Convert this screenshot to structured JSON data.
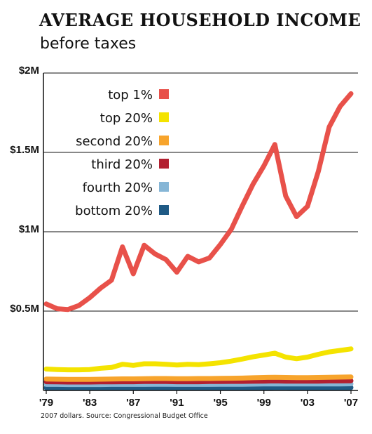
{
  "title": "AVERAGE HOUSEHOLD INCOME",
  "subtitle": "before taxes",
  "source": "2007 dollars. Source: Congressional Budget Office",
  "chart_data": {
    "type": "line",
    "title": "AVERAGE HOUSEHOLD INCOME",
    "subtitle": "before taxes",
    "xlabel": "",
    "ylabel": "",
    "x": [
      1979,
      1980,
      1981,
      1982,
      1983,
      1984,
      1985,
      1986,
      1987,
      1988,
      1989,
      1990,
      1991,
      1992,
      1993,
      1994,
      1995,
      1996,
      1997,
      1998,
      1999,
      2000,
      2001,
      2002,
      2003,
      2004,
      2005,
      2006,
      2007
    ],
    "xlim": [
      1979,
      2007
    ],
    "ylim": [
      0,
      2000000
    ],
    "grid": true,
    "legend_position": "top-left",
    "y_ticks": [
      {
        "value": 500000,
        "label": "$0.5M"
      },
      {
        "value": 1000000,
        "label": "$1M"
      },
      {
        "value": 1500000,
        "label": "$1.5M"
      },
      {
        "value": 2000000,
        "label": "$2M"
      }
    ],
    "x_ticks": [
      {
        "value": 1979,
        "label": "'79"
      },
      {
        "value": 1983,
        "label": "'83"
      },
      {
        "value": 1987,
        "label": "'87"
      },
      {
        "value": 1991,
        "label": "'91"
      },
      {
        "value": 1995,
        "label": "'95"
      },
      {
        "value": 1999,
        "label": "'99"
      },
      {
        "value": 2003,
        "label": "'03"
      },
      {
        "value": 2007,
        "label": "'07"
      }
    ],
    "series": [
      {
        "name": "top 1%",
        "color": "#e8514a",
        "values": [
          545000,
          515000,
          510000,
          535000,
          585000,
          645000,
          695000,
          905000,
          735000,
          915000,
          860000,
          825000,
          745000,
          845000,
          810000,
          835000,
          920000,
          1015000,
          1160000,
          1300000,
          1415000,
          1550000,
          1225000,
          1095000,
          1160000,
          1380000,
          1660000,
          1790000,
          1870000
        ]
      },
      {
        "name": "top 20%",
        "color": "#f4e300",
        "values": [
          135000,
          132000,
          130000,
          130000,
          132000,
          140000,
          145000,
          165000,
          158000,
          168000,
          168000,
          165000,
          160000,
          165000,
          163000,
          168000,
          175000,
          185000,
          198000,
          212000,
          223000,
          235000,
          210000,
          200000,
          210000,
          228000,
          243000,
          252000,
          262000
        ]
      },
      {
        "name": "second 20%",
        "color": "#f7a42c",
        "values": [
          72000,
          71000,
          70000,
          70000,
          70000,
          71000,
          72000,
          73000,
          73000,
          74000,
          75000,
          75000,
          74000,
          74000,
          75000,
          75000,
          76000,
          77000,
          78000,
          80000,
          82000,
          83000,
          82000,
          81000,
          81000,
          82000,
          83000,
          84000,
          85000
        ]
      },
      {
        "name": "third 20%",
        "color": "#b22030",
        "values": [
          55000,
          54000,
          53000,
          53000,
          53000,
          54000,
          54000,
          55000,
          55000,
          56000,
          56000,
          56000,
          55000,
          55000,
          55000,
          56000,
          56000,
          57000,
          57000,
          58000,
          59000,
          60000,
          59000,
          59000,
          59000,
          59000,
          60000,
          60000,
          61000
        ]
      },
      {
        "name": "fourth 20%",
        "color": "#86b6d6",
        "values": [
          38000,
          38000,
          37000,
          37000,
          37000,
          37000,
          38000,
          38000,
          38000,
          38000,
          39000,
          39000,
          38000,
          38000,
          38000,
          38000,
          39000,
          39000,
          39000,
          40000,
          41000,
          41000,
          41000,
          41000,
          41000,
          41000,
          41000,
          41000,
          42000
        ]
      },
      {
        "name": "bottom 20%",
        "color": "#1f5a85",
        "values": [
          16000,
          16000,
          16000,
          15000,
          15000,
          15000,
          16000,
          16000,
          16000,
          16000,
          16000,
          16000,
          16000,
          16000,
          16000,
          16000,
          16000,
          16000,
          17000,
          17000,
          17000,
          18000,
          18000,
          17000,
          17000,
          17000,
          17000,
          17000,
          18000
        ]
      }
    ]
  }
}
